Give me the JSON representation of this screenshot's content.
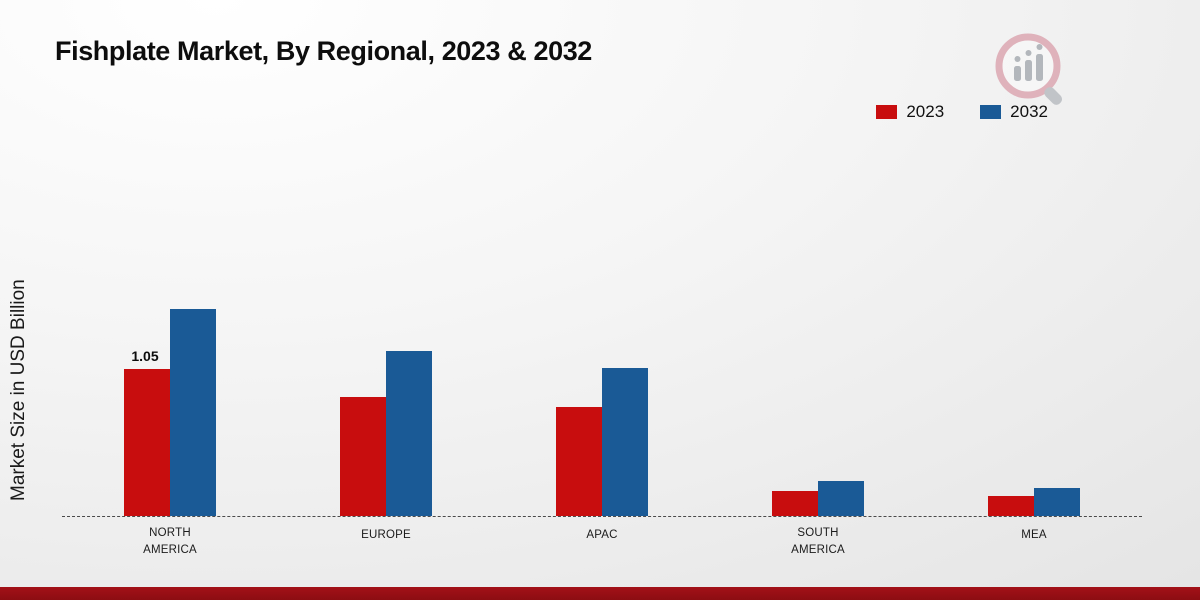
{
  "page": {
    "title": "Fishplate Market, By Regional, 2023 & 2032",
    "ylabel": "Market Size in USD Billion"
  },
  "colors": {
    "series_2023": "#c80d0e",
    "series_2032": "#1a5a96",
    "footer_strip": "#9c1016"
  },
  "chart_data": {
    "type": "bar",
    "title": "Fishplate Market, By Regional, 2023 & 2032",
    "xlabel": "",
    "ylabel": "Market Size in USD Billion",
    "categories": [
      "NORTH AMERICA",
      "EUROPE",
      "APAC",
      "SOUTH AMERICA",
      "MEA"
    ],
    "series": [
      {
        "name": "2023",
        "color": "#c80d0e",
        "values": [
          1.05,
          0.85,
          0.78,
          0.18,
          0.14
        ],
        "value_labels": [
          "1.05",
          "",
          "",
          "",
          ""
        ]
      },
      {
        "name": "2032",
        "color": "#1a5a96",
        "values": [
          1.48,
          1.18,
          1.06,
          0.25,
          0.2
        ],
        "value_labels": [
          "",
          "",
          "",
          "",
          ""
        ]
      }
    ],
    "ylim": [
      0,
      1.6
    ],
    "grid": false,
    "baseline_style": "dashed",
    "legend_position": "top-right"
  }
}
